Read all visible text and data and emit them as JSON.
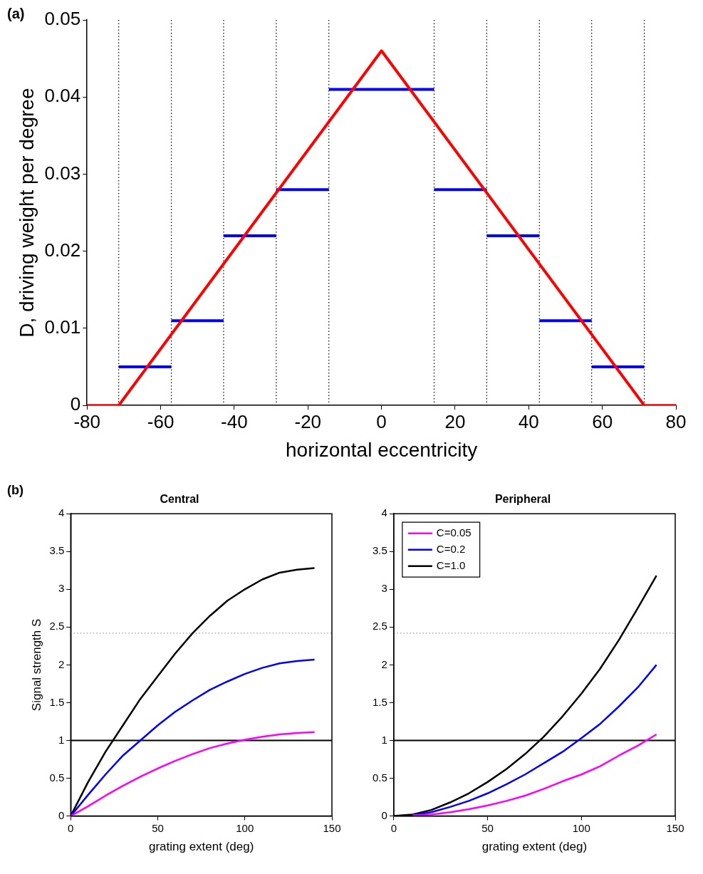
{
  "chart_data": [
    {
      "type": "line",
      "annotations": [
        "(a)"
      ],
      "xlabel": "horizontal eccentricity",
      "ylabel": "D, driving weight per degree",
      "xlim": [
        -80,
        80
      ],
      "xticks": [
        -80,
        -60,
        -40,
        -20,
        0,
        20,
        40,
        60,
        80
      ],
      "ylim": [
        0,
        0.05
      ],
      "yticks": [
        0,
        0.01,
        0.02,
        0.03,
        0.04,
        0.05
      ],
      "grid": false,
      "legend": false,
      "marker": "none",
      "line_style": "solid",
      "series": [
        {
          "color": "#ff0000",
          "x": [
            -80,
            -71.4,
            0,
            71.4,
            80
          ],
          "values": [
            0,
            0,
            0.046,
            0,
            0
          ]
        },
        {
          "color": "#0000ff",
          "x": [
            -71.4,
            -57.1
          ],
          "values": [
            0.005,
            0.005
          ]
        },
        {
          "color": "#0000ff",
          "x": [
            -57.1,
            -42.9
          ],
          "values": [
            0.011,
            0.011
          ]
        },
        {
          "color": "#0000ff",
          "x": [
            -42.9,
            -28.6
          ],
          "values": [
            0.022,
            0.022
          ]
        },
        {
          "color": "#0000ff",
          "x": [
            -28.6,
            -14.3
          ],
          "values": [
            0.028,
            0.028
          ]
        },
        {
          "color": "#0000ff",
          "x": [
            -14.3,
            14.3
          ],
          "values": [
            0.041,
            0.041
          ]
        },
        {
          "color": "#0000ff",
          "x": [
            14.3,
            28.6
          ],
          "values": [
            0.028,
            0.028
          ]
        },
        {
          "color": "#0000ff",
          "x": [
            28.6,
            42.9
          ],
          "values": [
            0.022,
            0.022
          ]
        },
        {
          "color": "#0000ff",
          "x": [
            42.9,
            57.1
          ],
          "values": [
            0.011,
            0.011
          ]
        },
        {
          "color": "#0000ff",
          "x": [
            57.1,
            71.4
          ],
          "values": [
            0.005,
            0.005
          ]
        }
      ],
      "ref_lines": [
        {
          "axis": "x",
          "value": -71.4,
          "color": "#000000",
          "line_style": "dotted"
        },
        {
          "axis": "x",
          "value": -57.1,
          "color": "#000000",
          "line_style": "dotted"
        },
        {
          "axis": "x",
          "value": -42.9,
          "color": "#000000",
          "line_style": "dotted"
        },
        {
          "axis": "x",
          "value": -28.6,
          "color": "#000000",
          "line_style": "dotted"
        },
        {
          "axis": "x",
          "value": -14.3,
          "color": "#000000",
          "line_style": "dotted"
        },
        {
          "axis": "x",
          "value": 14.3,
          "color": "#000000",
          "line_style": "dotted"
        },
        {
          "axis": "x",
          "value": 28.6,
          "color": "#000000",
          "line_style": "dotted"
        },
        {
          "axis": "x",
          "value": 42.9,
          "color": "#000000",
          "line_style": "dotted"
        },
        {
          "axis": "x",
          "value": 57.1,
          "color": "#000000",
          "line_style": "dotted"
        },
        {
          "axis": "x",
          "value": 71.4,
          "color": "#000000",
          "line_style": "dotted"
        }
      ]
    },
    {
      "type": "line",
      "title": "Central",
      "annotations": [
        "(b)"
      ],
      "xlabel": "grating extent (deg)",
      "ylabel": "Signal strength S",
      "xlim": [
        0,
        150
      ],
      "xticks": [
        0,
        50,
        100,
        150
      ],
      "ylim": [
        0,
        4
      ],
      "yticks": [
        0,
        0.5,
        1,
        1.5,
        2,
        2.5,
        3,
        3.5,
        4
      ],
      "grid": false,
      "legend": false,
      "marker": "none",
      "line_style": "solid",
      "x": [
        0,
        10,
        20,
        30,
        40,
        50,
        60,
        70,
        80,
        90,
        100,
        110,
        120,
        130,
        140
      ],
      "series": [
        {
          "color": "#ff00ff",
          "values": [
            0,
            0.13,
            0.27,
            0.4,
            0.52,
            0.63,
            0.73,
            0.82,
            0.9,
            0.96,
            1.01,
            1.05,
            1.08,
            1.1,
            1.11
          ]
        },
        {
          "color": "#0000ff",
          "values": [
            0,
            0.28,
            0.55,
            0.8,
            1.0,
            1.2,
            1.38,
            1.53,
            1.67,
            1.78,
            1.88,
            1.96,
            2.02,
            2.05,
            2.07
          ]
        },
        {
          "color": "#000000",
          "values": [
            0,
            0.45,
            0.85,
            1.2,
            1.55,
            1.85,
            2.15,
            2.42,
            2.65,
            2.85,
            3.0,
            3.13,
            3.22,
            3.26,
            3.28
          ]
        }
      ],
      "ref_lines": [
        {
          "axis": "y",
          "value": 1,
          "color": "#000000",
          "line_style": "solid"
        },
        {
          "axis": "y",
          "value": 2.42,
          "color": "#999999",
          "line_style": "dotted"
        }
      ]
    },
    {
      "type": "line",
      "title": "Peripheral",
      "xlabel": "grating extent (deg)",
      "xlim": [
        0,
        150
      ],
      "xticks": [
        0,
        50,
        100,
        150
      ],
      "ylim": [
        0,
        4
      ],
      "yticks": [
        0,
        0.5,
        1,
        1.5,
        2,
        2.5,
        3,
        3.5,
        4
      ],
      "grid": false,
      "legend": "top left",
      "marker": "none",
      "line_style": "solid",
      "x": [
        0,
        10,
        20,
        30,
        40,
        50,
        60,
        70,
        80,
        90,
        100,
        110,
        120,
        130,
        140
      ],
      "series": [
        {
          "name": "C=0.05",
          "color": "#ff00ff",
          "values": [
            null,
            0.01,
            0.02,
            0.05,
            0.09,
            0.14,
            0.2,
            0.27,
            0.36,
            0.46,
            0.55,
            0.66,
            0.8,
            0.93,
            1.08
          ]
        },
        {
          "name": "C=0.2",
          "color": "#0000ff",
          "values": [
            null,
            0.01,
            0.05,
            0.12,
            0.2,
            0.3,
            0.42,
            0.55,
            0.7,
            0.85,
            1.03,
            1.22,
            1.45,
            1.7,
            2.0
          ]
        },
        {
          "name": "C=1.0",
          "color": "#000000",
          "values": [
            0,
            0.02,
            0.08,
            0.18,
            0.3,
            0.45,
            0.62,
            0.82,
            1.05,
            1.32,
            1.62,
            1.95,
            2.33,
            2.75,
            3.18
          ]
        }
      ],
      "ref_lines": [
        {
          "axis": "y",
          "value": 1,
          "color": "#000000",
          "line_style": "solid"
        },
        {
          "axis": "y",
          "value": 2.42,
          "color": "#999999",
          "line_style": "dotted"
        }
      ]
    }
  ]
}
